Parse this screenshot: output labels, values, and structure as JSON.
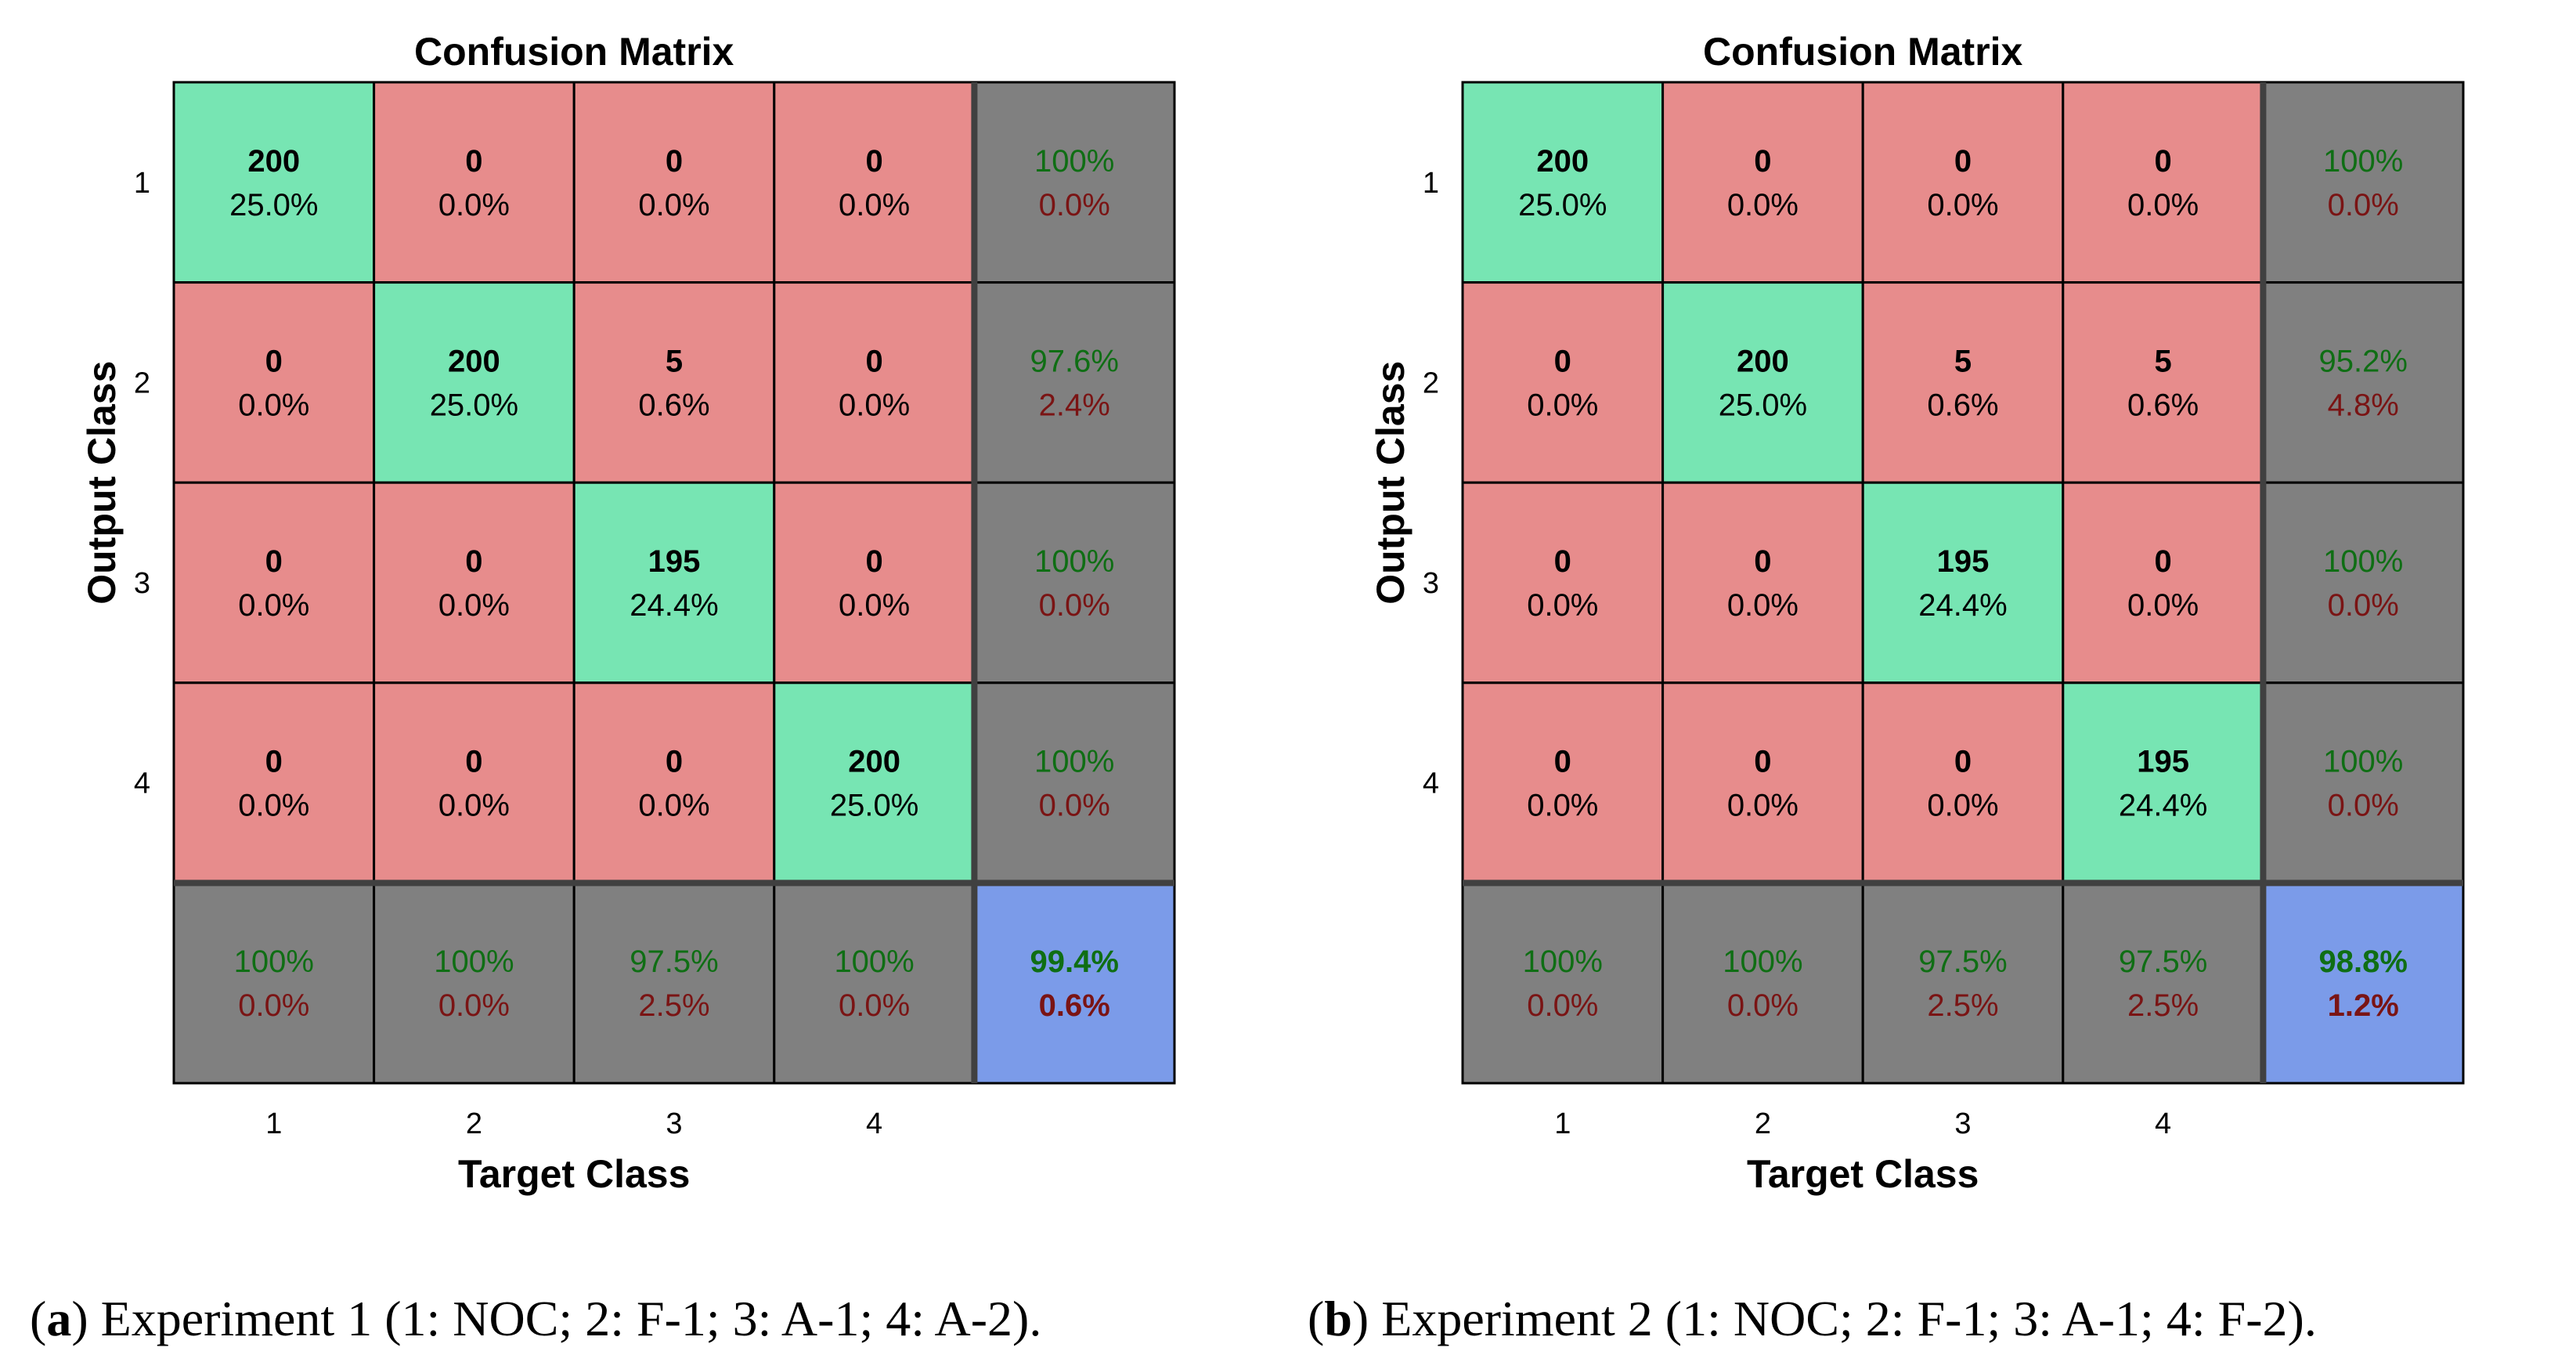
{
  "colors": {
    "correct": "#77e5b3",
    "incorrect": "#e78c8c",
    "summary": "#808080",
    "overall": "#7b9be9",
    "good_text": "#0f6e14",
    "bad_text": "#7a1414",
    "grid": "#000000",
    "separator": "#404040"
  },
  "chart_data": [
    {
      "type": "heatmap",
      "title": "Confusion Matrix",
      "xlabel": "Target Class",
      "ylabel": "Output Class",
      "x_ticks": [
        "1",
        "2",
        "3",
        "4"
      ],
      "y_ticks": [
        "1",
        "2",
        "3",
        "4"
      ],
      "cells": [
        [
          {
            "count": "200",
            "pct": "25.0%"
          },
          {
            "count": "0",
            "pct": "0.0%"
          },
          {
            "count": "0",
            "pct": "0.0%"
          },
          {
            "count": "0",
            "pct": "0.0%"
          }
        ],
        [
          {
            "count": "0",
            "pct": "0.0%"
          },
          {
            "count": "200",
            "pct": "25.0%"
          },
          {
            "count": "5",
            "pct": "0.6%"
          },
          {
            "count": "0",
            "pct": "0.0%"
          }
        ],
        [
          {
            "count": "0",
            "pct": "0.0%"
          },
          {
            "count": "0",
            "pct": "0.0%"
          },
          {
            "count": "195",
            "pct": "24.4%"
          },
          {
            "count": "0",
            "pct": "0.0%"
          }
        ],
        [
          {
            "count": "0",
            "pct": "0.0%"
          },
          {
            "count": "0",
            "pct": "0.0%"
          },
          {
            "count": "0",
            "pct": "0.0%"
          },
          {
            "count": "200",
            "pct": "25.0%"
          }
        ]
      ],
      "row_summary": [
        {
          "correct": "100%",
          "error": "0.0%"
        },
        {
          "correct": "97.6%",
          "error": "2.4%"
        },
        {
          "correct": "100%",
          "error": "0.0%"
        },
        {
          "correct": "100%",
          "error": "0.0%"
        }
      ],
      "col_summary": [
        {
          "correct": "100%",
          "error": "0.0%"
        },
        {
          "correct": "100%",
          "error": "0.0%"
        },
        {
          "correct": "97.5%",
          "error": "2.5%"
        },
        {
          "correct": "100%",
          "error": "0.0%"
        }
      ],
      "overall": {
        "correct": "99.4%",
        "error": "0.6%"
      },
      "caption_label": "a",
      "caption_text": "Experiment 1 (1: NOC; 2: F-1; 3: A-1; 4: A-2)."
    },
    {
      "type": "heatmap",
      "title": "Confusion Matrix",
      "xlabel": "Target Class",
      "ylabel": "Output Class",
      "x_ticks": [
        "1",
        "2",
        "3",
        "4"
      ],
      "y_ticks": [
        "1",
        "2",
        "3",
        "4"
      ],
      "cells": [
        [
          {
            "count": "200",
            "pct": "25.0%"
          },
          {
            "count": "0",
            "pct": "0.0%"
          },
          {
            "count": "0",
            "pct": "0.0%"
          },
          {
            "count": "0",
            "pct": "0.0%"
          }
        ],
        [
          {
            "count": "0",
            "pct": "0.0%"
          },
          {
            "count": "200",
            "pct": "25.0%"
          },
          {
            "count": "5",
            "pct": "0.6%"
          },
          {
            "count": "5",
            "pct": "0.6%"
          }
        ],
        [
          {
            "count": "0",
            "pct": "0.0%"
          },
          {
            "count": "0",
            "pct": "0.0%"
          },
          {
            "count": "195",
            "pct": "24.4%"
          },
          {
            "count": "0",
            "pct": "0.0%"
          }
        ],
        [
          {
            "count": "0",
            "pct": "0.0%"
          },
          {
            "count": "0",
            "pct": "0.0%"
          },
          {
            "count": "0",
            "pct": "0.0%"
          },
          {
            "count": "195",
            "pct": "24.4%"
          }
        ]
      ],
      "row_summary": [
        {
          "correct": "100%",
          "error": "0.0%"
        },
        {
          "correct": "95.2%",
          "error": "4.8%"
        },
        {
          "correct": "100%",
          "error": "0.0%"
        },
        {
          "correct": "100%",
          "error": "0.0%"
        }
      ],
      "col_summary": [
        {
          "correct": "100%",
          "error": "0.0%"
        },
        {
          "correct": "100%",
          "error": "0.0%"
        },
        {
          "correct": "97.5%",
          "error": "2.5%"
        },
        {
          "correct": "97.5%",
          "error": "2.5%"
        }
      ],
      "overall": {
        "correct": "98.8%",
        "error": "1.2%"
      },
      "caption_label": "b",
      "caption_text": "Experiment 2 (1: NOC; 2: F-1; 3: A-1; 4: F-2)."
    }
  ]
}
